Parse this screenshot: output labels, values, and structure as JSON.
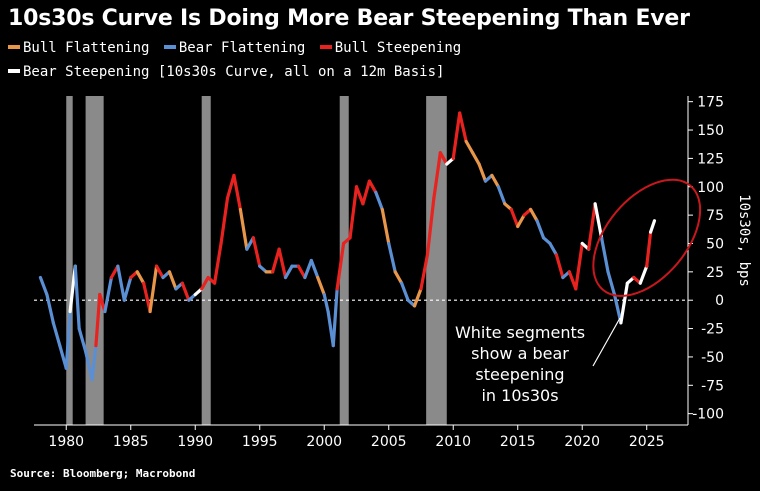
{
  "title": "10s30s Curve Is Doing More Bear Steepening Than Ever",
  "legend": [
    {
      "label": "Bull Flattening",
      "color": "#e8974a"
    },
    {
      "label": "Bear Flattening",
      "color": "#5b8fd4"
    },
    {
      "label": "Bull Steepening",
      "color": "#e8221f"
    },
    {
      "label": "Bear Steepening [10s30s Curve, all on a 12m Basis]",
      "color": "#ffffff"
    }
  ],
  "source": "Source: Bloomberg; Macrobond",
  "chart_data": {
    "type": "line",
    "title": "10s30s Curve Is Doing More Bear Steepening Than Ever",
    "ylabel": "10s30s, bps",
    "xlabel": "",
    "xlim": [
      1977.5,
      2028.2
    ],
    "ylim": [
      -110,
      180
    ],
    "x_ticks": [
      1980,
      1985,
      1990,
      1995,
      2000,
      2005,
      2010,
      2015,
      2020,
      2025
    ],
    "x_tick_labels": [
      "1980",
      "1985",
      "1990",
      "1995",
      "2000",
      "2005",
      "2010",
      "2015",
      "2020",
      "2025"
    ],
    "y_ticks": [
      175,
      150,
      125,
      100,
      75,
      50,
      25,
      0,
      -25,
      -50,
      -75,
      -100
    ],
    "y_tick_labels": [
      "175",
      "150",
      "125",
      "100",
      "75",
      "50",
      "25",
      "0",
      "-25",
      "-50",
      "-75",
      "-100"
    ],
    "zero_line": true,
    "recessions": [
      [
        1980.0,
        1980.5
      ],
      [
        1981.5,
        1982.9
      ],
      [
        1990.5,
        1991.2
      ],
      [
        2001.2,
        2001.9
      ],
      [
        2007.9,
        2009.5
      ]
    ],
    "colors": {
      "bull_flattening": "#e8974a",
      "bear_flattening": "#5b8fd4",
      "bull_steepening": "#e8221f",
      "bear_steepening": "#ffffff",
      "recession": "#8a8a8a",
      "highlight": "#c8181e"
    },
    "series": [
      {
        "name": "10s30s curve",
        "x": [
          1978,
          1978.5,
          1979,
          1979.5,
          1980,
          1980.3,
          1980.7,
          1981,
          1981.5,
          1982,
          1982.3,
          1982.6,
          1983,
          1983.5,
          1984,
          1984.5,
          1985,
          1985.5,
          1986,
          1986.5,
          1987,
          1987.5,
          1988,
          1988.5,
          1989,
          1989.5,
          1990,
          1990.5,
          1991,
          1991.5,
          1992,
          1992.5,
          1993,
          1993.5,
          1994,
          1994.5,
          1995,
          1995.5,
          1996,
          1996.5,
          1997,
          1997.5,
          1998,
          1998.5,
          1999,
          1999.5,
          2000,
          2000.3,
          2000.7,
          2001,
          2001.5,
          2002,
          2002.5,
          2003,
          2003.5,
          2004,
          2004.5,
          2005,
          2005.5,
          2006,
          2006.5,
          2007,
          2007.5,
          2008,
          2008.5,
          2009,
          2009.5,
          2010,
          2010.5,
          2011,
          2011.5,
          2012,
          2012.5,
          2013,
          2013.5,
          2014,
          2014.5,
          2015,
          2015.5,
          2016,
          2016.5,
          2017,
          2017.5,
          2018,
          2018.5,
          2019,
          2019.5,
          2020,
          2020.5,
          2021,
          2021.5,
          2022,
          2022.5,
          2023,
          2023.5,
          2024,
          2024.5,
          2025,
          2025.3,
          2025.6
        ],
        "y": [
          20,
          5,
          -20,
          -40,
          -60,
          -10,
          30,
          -25,
          -45,
          -70,
          -40,
          5,
          -10,
          20,
          30,
          0,
          20,
          25,
          15,
          -10,
          30,
          20,
          25,
          10,
          15,
          0,
          5,
          10,
          20,
          15,
          50,
          90,
          110,
          80,
          45,
          55,
          30,
          25,
          25,
          45,
          20,
          30,
          30,
          20,
          35,
          20,
          5,
          -10,
          -40,
          10,
          50,
          55,
          100,
          85,
          105,
          95,
          80,
          50,
          25,
          15,
          0,
          -5,
          10,
          40,
          90,
          130,
          120,
          125,
          165,
          140,
          130,
          120,
          105,
          110,
          100,
          85,
          80,
          65,
          75,
          80,
          70,
          55,
          50,
          40,
          20,
          25,
          10,
          50,
          45,
          85,
          55,
          25,
          5,
          -20,
          15,
          20,
          15,
          30,
          60,
          70
        ]
      },
      {
        "name": "Bull Flattening",
        "x": [],
        "y": []
      },
      {
        "name": "Bear Flattening",
        "x": [],
        "y": []
      },
      {
        "name": "Bull Steepening",
        "x": [],
        "y": []
      },
      {
        "name": "Bear Steepening",
        "x": [],
        "y": []
      }
    ],
    "regimes": [
      "bear_flattening",
      "bear_flattening",
      "bear_flattening",
      "bear_flattening",
      "bear_flattening",
      "bear_steepening",
      "bear_flattening",
      "bear_flattening",
      "bear_flattening",
      "bear_flattening",
      "bull_steepening",
      "bull_steepening",
      "bear_flattening",
      "bull_steepening",
      "bear_flattening",
      "bear_flattening",
      "bull_steepening",
      "bull_flattening",
      "bull_steepening",
      "bull_flattening",
      "bull_steepening",
      "bear_flattening",
      "bull_flattening",
      "bear_flattening",
      "bull_steepening",
      "bear_flattening",
      "bear_steepening",
      "bull_steepening",
      "bull_steepening",
      "bull_steepening",
      "bull_steepening",
      "bull_steepening",
      "bull_steepening",
      "bull_flattening",
      "bear_flattening",
      "bull_steepening",
      "bear_flattening",
      "bull_flattening",
      "bull_steepening",
      "bull_steepening",
      "bear_flattening",
      "bear_flattening",
      "bull_steepening",
      "bear_flattening",
      "bear_flattening",
      "bull_flattening",
      "bear_flattening",
      "bear_flattening",
      "bear_flattening",
      "bull_steepening",
      "bull_steepening",
      "bull_steepening",
      "bull_steepening",
      "bull_steepening",
      "bull_steepening",
      "bear_flattening",
      "bull_flattening",
      "bear_flattening",
      "bull_flattening",
      "bear_flattening",
      "bear_flattening",
      "bull_flattening",
      "bull_steepening",
      "bull_steepening",
      "bull_steepening",
      "bull_steepening",
      "bear_steepening",
      "bull_steepening",
      "bull_steepening",
      "bull_flattening",
      "bull_flattening",
      "bull_flattening",
      "bear_flattening",
      "bull_flattening",
      "bear_flattening",
      "bull_flattening",
      "bull_steepening",
      "bull_flattening",
      "bull_steepening",
      "bull_flattening",
      "bear_flattening",
      "bear_flattening",
      "bear_flattening",
      "bull_steepening",
      "bear_flattening",
      "bull_steepening",
      "bull_steepening",
      "bear_steepening",
      "bull_steepening",
      "bear_steepening",
      "bear_flattening",
      "bear_flattening",
      "bear_flattening",
      "bear_steepening",
      "bear_steepening",
      "bull_steepening",
      "bear_steepening",
      "bull_steepening",
      "bear_steepening",
      "bear_steepening"
    ],
    "annotation": {
      "lines": [
        "White segments",
        "show a bear",
        "steepening",
        "in 10s30s"
      ]
    }
  }
}
